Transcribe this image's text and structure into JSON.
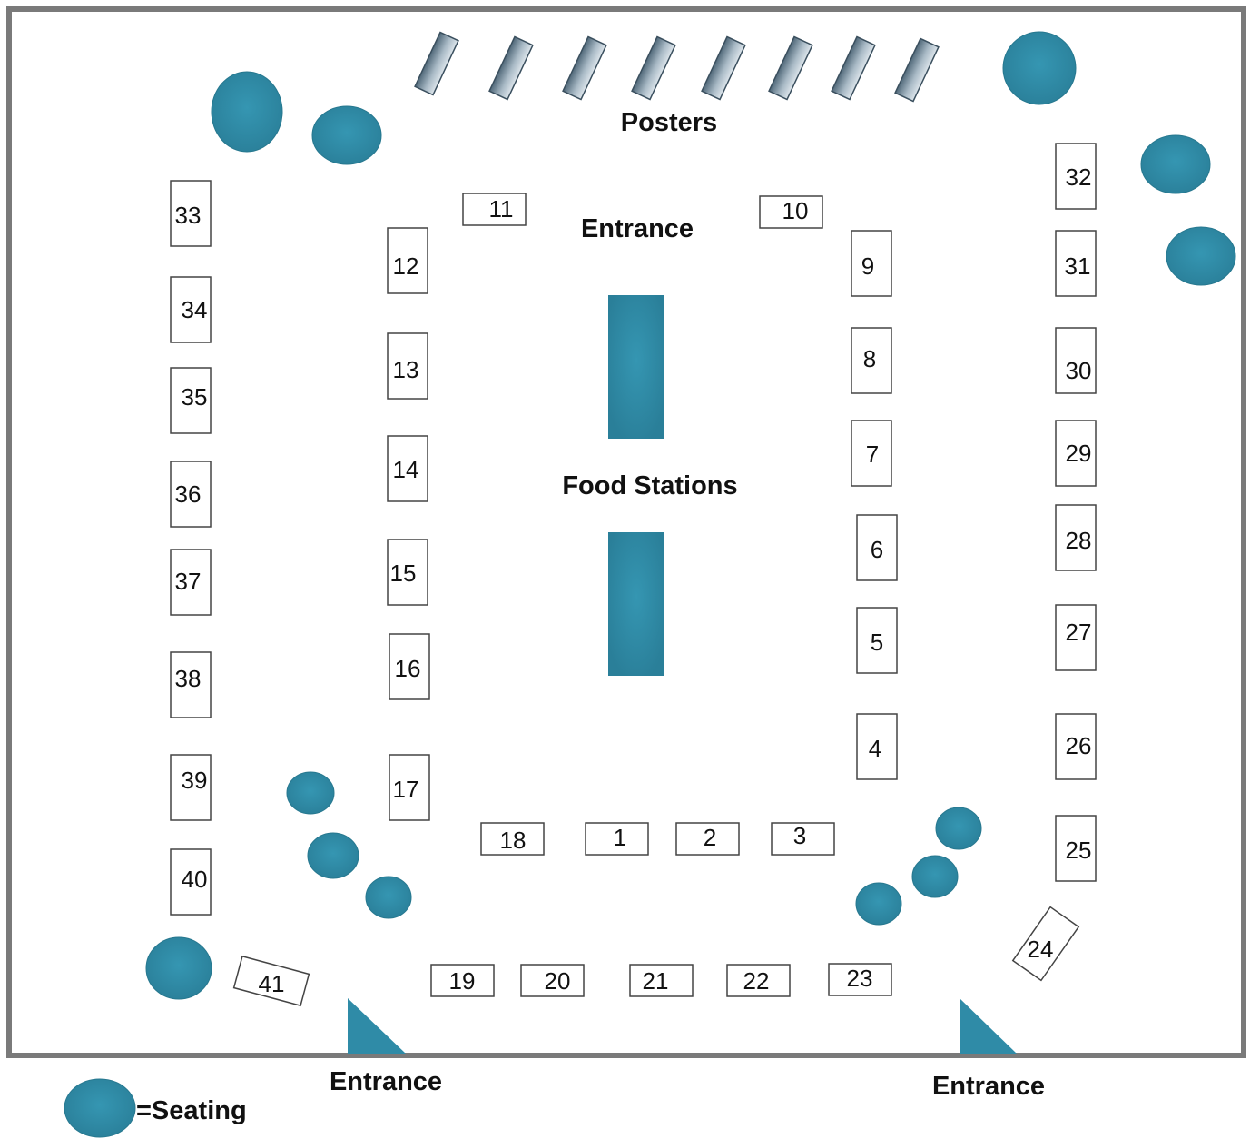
{
  "labels": {
    "posters": "Posters",
    "entrance_top": "Entrance",
    "food_stations": "Food Stations",
    "entrance_bottom_left": "Entrance",
    "entrance_bottom_right": "Entrance",
    "legend": "=Seating"
  },
  "booths": [
    "1",
    "2",
    "3",
    "4",
    "5",
    "6",
    "7",
    "8",
    "9",
    "10",
    "11",
    "12",
    "13",
    "14",
    "15",
    "16",
    "17",
    "18",
    "19",
    "20",
    "21",
    "22",
    "23",
    "24",
    "25",
    "26",
    "27",
    "28",
    "29",
    "30",
    "31",
    "32",
    "33",
    "34",
    "35",
    "36",
    "37",
    "38",
    "39",
    "40",
    "41"
  ],
  "colors": {
    "seating": "#2f8ba7",
    "poster": "#7d93a3",
    "border": "#7a7a7a"
  },
  "icons": {
    "seating": "seating-circle-icon",
    "poster": "poster-board-icon",
    "entrance": "entrance-wedge-icon"
  }
}
